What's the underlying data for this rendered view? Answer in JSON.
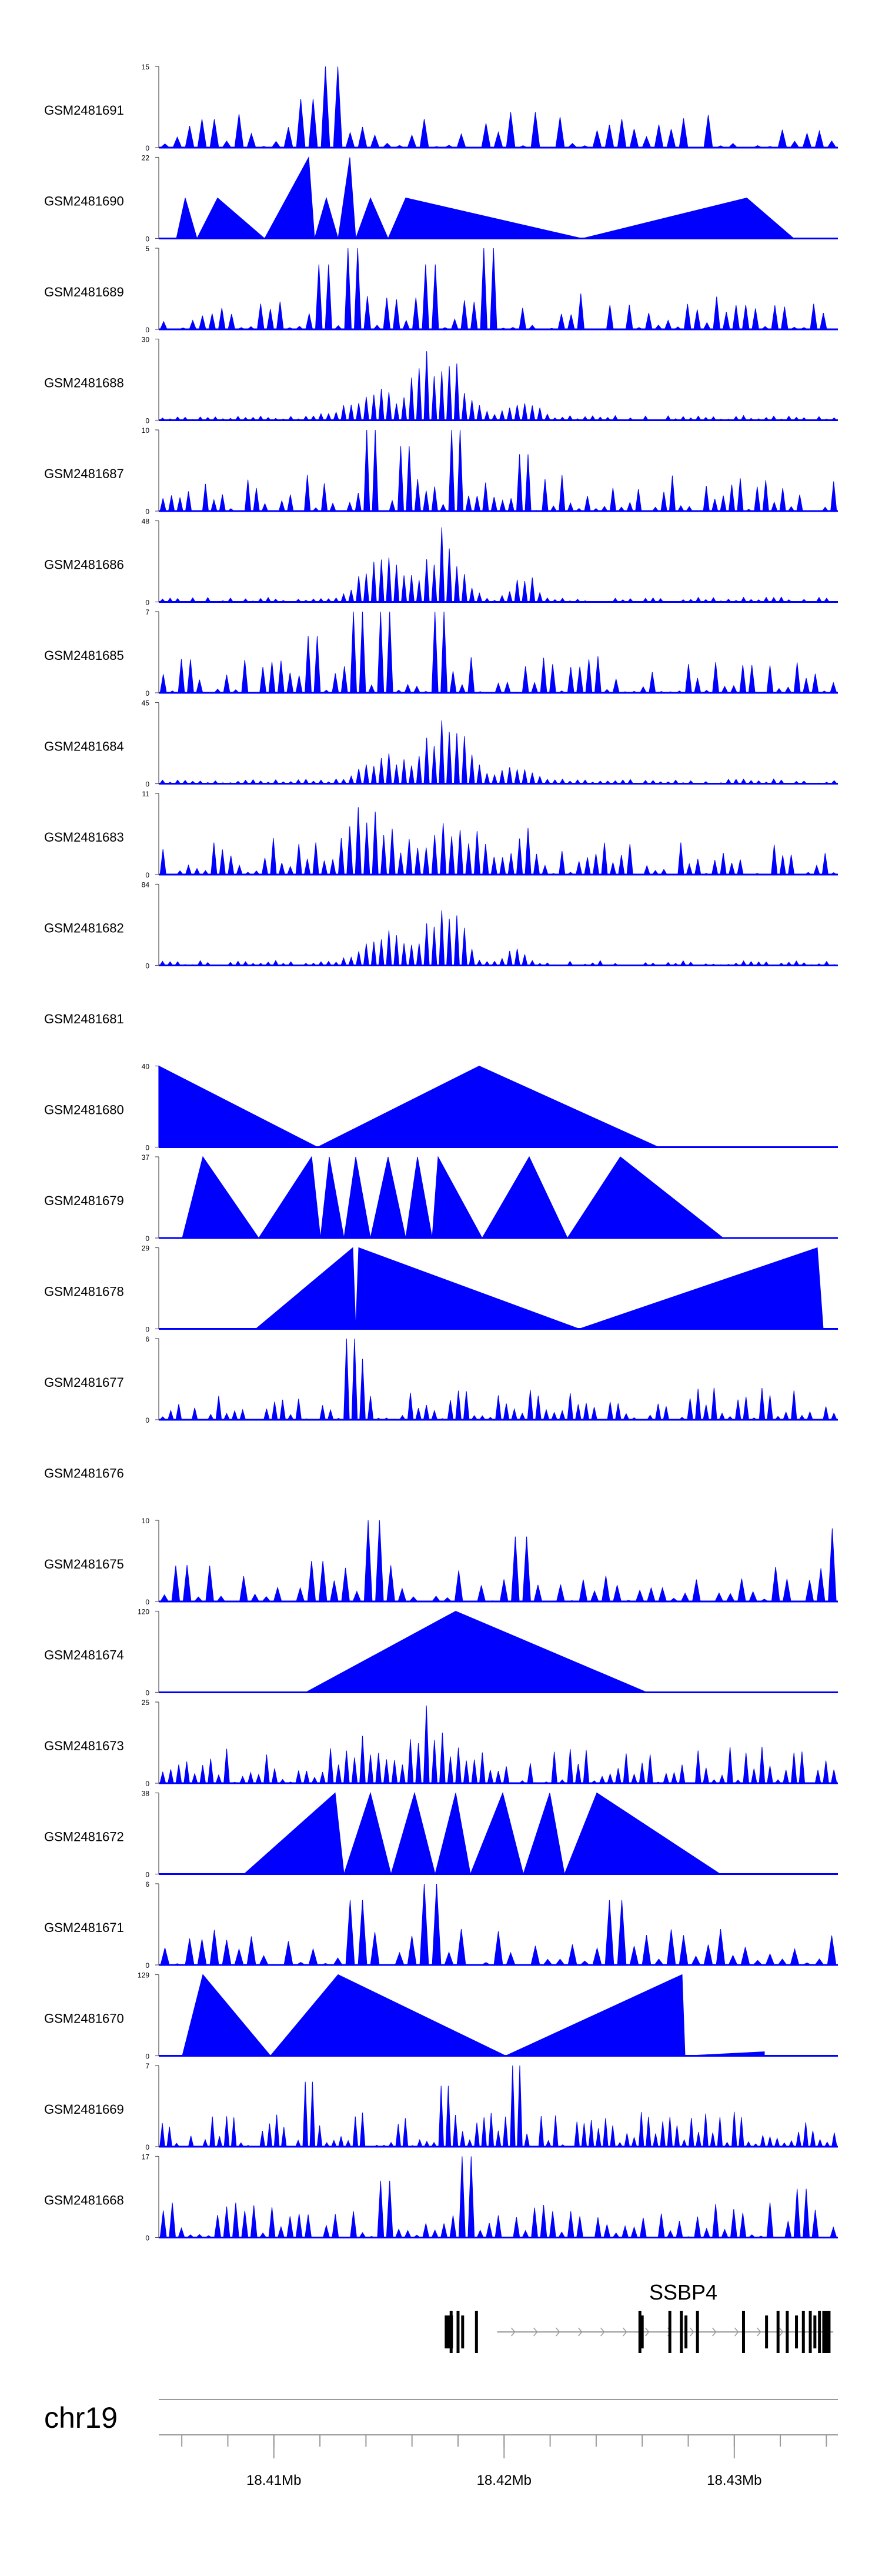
{
  "chart_data": {
    "type": "area",
    "title": "",
    "color": "#0000ff",
    "chromosome": "chr19",
    "x_range_mb": [
      18.405,
      18.4345
    ],
    "x_ticks": [
      {
        "pos_mb": 18.41,
        "label": "18.41Mb"
      },
      {
        "pos_mb": 18.42,
        "label": "18.42Mb"
      },
      {
        "pos_mb": 18.43,
        "label": "18.43Mb"
      }
    ],
    "gene": {
      "name": "SSBP4",
      "start_mb": 18.4197,
      "end_mb": 18.4343,
      "strand": "+",
      "exons_mb": [
        18.4176,
        18.4177,
        18.418,
        18.4182,
        18.4188,
        18.4259,
        18.426,
        18.4272,
        18.4277,
        18.4279,
        18.4284,
        18.4304,
        18.4314,
        18.4319,
        18.4323,
        18.4327,
        18.433,
        18.4333,
        18.4335,
        18.4337,
        18.434
      ]
    },
    "tracks": [
      {
        "name": "GSM2481691",
        "ymax": "15"
      },
      {
        "name": "GSM2481690",
        "ymax": "22"
      },
      {
        "name": "GSM2481689",
        "ymax": "5"
      },
      {
        "name": "GSM2481688",
        "ymax": "30"
      },
      {
        "name": "GSM2481687",
        "ymax": "10"
      },
      {
        "name": "GSM2481686",
        "ymax": "48"
      },
      {
        "name": "GSM2481685",
        "ymax": "7"
      },
      {
        "name": "GSM2481684",
        "ymax": "45"
      },
      {
        "name": "GSM2481683",
        "ymax": "11"
      },
      {
        "name": "GSM2481682",
        "ymax": "84"
      },
      {
        "name": "GSM2481681",
        "ymax": null
      },
      {
        "name": "GSM2481680",
        "ymax": "40"
      },
      {
        "name": "GSM2481679",
        "ymax": "37"
      },
      {
        "name": "GSM2481678",
        "ymax": "29"
      },
      {
        "name": "GSM2481677",
        "ymax": "6"
      },
      {
        "name": "GSM2481676",
        "ymax": null
      },
      {
        "name": "GSM2481675",
        "ymax": "10"
      },
      {
        "name": "GSM2481674",
        "ymax": "120"
      },
      {
        "name": "GSM2481673",
        "ymax": "25"
      },
      {
        "name": "GSM2481672",
        "ymax": "38"
      },
      {
        "name": "GSM2481671",
        "ymax": "6"
      },
      {
        "name": "GSM2481670",
        "ymax": "129"
      },
      {
        "name": "GSM2481669",
        "ymax": "7"
      },
      {
        "name": "GSM2481668",
        "ymax": "17"
      }
    ]
  }
}
